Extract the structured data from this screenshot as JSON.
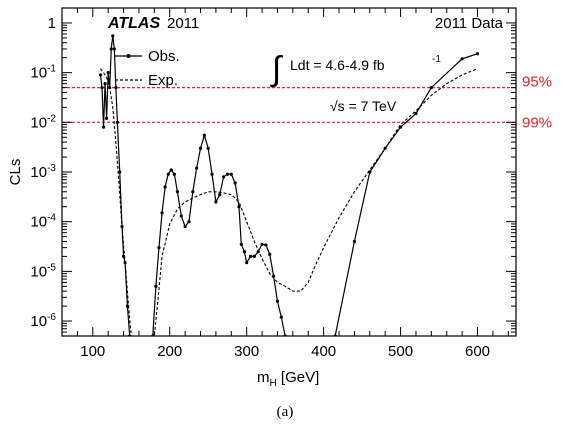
{
  "chart_data": {
    "type": "line",
    "title": "",
    "xlabel_main": "m",
    "xlabel_sub": "H",
    "xlabel_unit": " [GeV]",
    "ylabel": "CLs",
    "xlim": [
      60,
      650
    ],
    "ylim": [
      5e-07,
      2
    ],
    "yscale": "log",
    "x_ticks": [
      100,
      200,
      300,
      400,
      500,
      600
    ],
    "y_ticks": [
      {
        "value": 1,
        "label": "1"
      },
      {
        "value": 0.1,
        "base": "10",
        "exp": "-1"
      },
      {
        "value": 0.01,
        "base": "10",
        "exp": "-2"
      },
      {
        "value": 0.001,
        "base": "10",
        "exp": "-3"
      },
      {
        "value": 0.0001,
        "base": "10",
        "exp": "-4"
      },
      {
        "value": 1e-05,
        "base": "10",
        "exp": "-5"
      },
      {
        "value": 1e-06,
        "base": "10",
        "exp": "-6"
      }
    ],
    "grid": false,
    "legend_position": "top-left",
    "atlas_label": "ATLAS",
    "atlas_year": "2011",
    "data_label": "2011 Data",
    "lumi_integral": "∫",
    "lumi_text": "Ldt = 4.6-4.9 fb",
    "lumi_exp": "-1",
    "energy_text": "√s = 7 TeV",
    "reference_lines": [
      {
        "value": 0.05,
        "label": "95%",
        "color": "#e8202a"
      },
      {
        "value": 0.01,
        "label": "99%",
        "color": "#e8202a"
      }
    ],
    "series": [
      {
        "name": "Obs.",
        "style": "solid-markers",
        "color": "#000000",
        "points": [
          [
            110,
            0.09
          ],
          [
            112,
            0.05
          ],
          [
            114,
            0.008
          ],
          [
            116,
            0.06
          ],
          [
            118,
            0.012
          ],
          [
            120,
            0.1
          ],
          [
            122,
            0.05
          ],
          [
            124,
            0.3
          ],
          [
            126,
            0.55
          ],
          [
            128,
            0.3
          ],
          [
            130,
            0.05
          ],
          [
            132,
            0.01
          ],
          [
            135,
            0.001
          ],
          [
            138,
            8e-05
          ],
          [
            140,
            2e-05
          ],
          [
            142,
            1.5e-05
          ],
          [
            145,
            2e-06
          ],
          [
            148,
            5e-07
          ]
        ]
      },
      {
        "name": "",
        "style": "solid-markers",
        "color": "#000000",
        "points": [
          [
            178,
            5e-07
          ],
          [
            182,
            5e-06
          ],
          [
            186,
            3e-05
          ],
          [
            190,
            0.00015
          ],
          [
            194,
            0.0005
          ],
          [
            198,
            0.0009
          ],
          [
            202,
            0.0011
          ],
          [
            206,
            0.0009
          ],
          [
            210,
            0.0004
          ],
          [
            215,
            0.00013
          ],
          [
            220,
            8e-05
          ],
          [
            225,
            0.0001
          ],
          [
            230,
            0.0004
          ],
          [
            235,
            0.0012
          ],
          [
            240,
            0.003
          ],
          [
            245,
            0.0055
          ],
          [
            250,
            0.003
          ],
          [
            255,
            0.0009
          ],
          [
            260,
            0.00025
          ],
          [
            265,
            0.00035
          ],
          [
            270,
            0.0008
          ],
          [
            275,
            0.0009
          ],
          [
            280,
            0.0009
          ],
          [
            285,
            0.0006
          ],
          [
            290,
            0.0002
          ],
          [
            293,
            3.5e-05
          ],
          [
            297,
            2.5e-05
          ],
          [
            300,
            1.5e-05
          ],
          [
            305,
            2e-05
          ],
          [
            310,
            2e-05
          ],
          [
            315,
            2.5e-05
          ],
          [
            320,
            3.5e-05
          ],
          [
            325,
            3.4e-05
          ],
          [
            330,
            2.2e-05
          ],
          [
            335,
            8e-06
          ],
          [
            340,
            2.5e-06
          ],
          [
            345,
            1.2e-06
          ],
          [
            350,
            5e-07
          ]
        ]
      },
      {
        "name": "",
        "style": "solid-markers",
        "color": "#000000",
        "points": [
          [
            415,
            5e-07
          ],
          [
            440,
            4e-05
          ],
          [
            460,
            0.001
          ],
          [
            480,
            0.003
          ],
          [
            500,
            0.008
          ],
          [
            520,
            0.015
          ],
          [
            540,
            0.05
          ],
          [
            580,
            0.19
          ],
          [
            600,
            0.24
          ]
        ]
      },
      {
        "name": "Exp.",
        "style": "dashed",
        "color": "#000000",
        "points": [
          [
            110,
            0.12
          ],
          [
            114,
            0.1
          ],
          [
            118,
            0.08
          ],
          [
            122,
            0.05
          ],
          [
            126,
            0.02
          ],
          [
            130,
            0.004
          ],
          [
            134,
            0.0006
          ],
          [
            138,
            8e-05
          ],
          [
            142,
            1.5e-05
          ],
          [
            146,
            2.5e-06
          ],
          [
            150,
            5e-07
          ],
          [
            180,
            5e-07
          ],
          [
            185,
            3e-06
          ],
          [
            190,
            2e-05
          ],
          [
            200,
            9e-05
          ],
          [
            210,
            0.00018
          ],
          [
            220,
            0.00025
          ],
          [
            230,
            0.0003
          ],
          [
            240,
            0.00035
          ],
          [
            250,
            0.0004
          ],
          [
            260,
            0.0004
          ],
          [
            270,
            0.00038
          ],
          [
            280,
            0.00035
          ],
          [
            290,
            0.00025
          ],
          [
            300,
            0.0001
          ],
          [
            310,
            4e-05
          ],
          [
            320,
            1.8e-05
          ],
          [
            330,
            9e-06
          ],
          [
            340,
            6e-06
          ],
          [
            350,
            5e-06
          ],
          [
            360,
            4e-06
          ],
          [
            370,
            4e-06
          ],
          [
            380,
            6e-06
          ],
          [
            390,
            1.4e-05
          ],
          [
            400,
            3e-05
          ],
          [
            420,
            0.00012
          ],
          [
            440,
            0.0004
          ],
          [
            460,
            0.0011
          ],
          [
            480,
            0.003
          ],
          [
            500,
            0.009
          ],
          [
            520,
            0.017
          ],
          [
            540,
            0.035
          ],
          [
            560,
            0.06
          ],
          [
            580,
            0.09
          ],
          [
            600,
            0.12
          ]
        ]
      }
    ]
  },
  "caption": "(a)"
}
